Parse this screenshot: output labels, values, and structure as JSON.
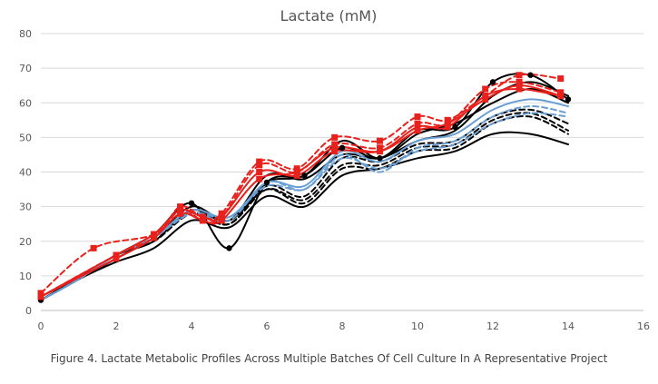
{
  "caption": "Figure 4. Lactate Metabolic Profiles Across Multiple Batches Of Cell Culture In A Representative Project",
  "chart_data": {
    "type": "line",
    "title": "Lactate (mM)",
    "xlabel": "",
    "ylabel": "",
    "xlim": [
      0,
      16
    ],
    "ylim": [
      0,
      80
    ],
    "x_ticks": [
      0,
      2,
      4,
      6,
      8,
      10,
      12,
      14,
      16
    ],
    "y_ticks": [
      0,
      10,
      20,
      30,
      40,
      50,
      60,
      70,
      80
    ],
    "grid": "horizontal",
    "legend": "none",
    "series": [
      {
        "color": "#000000",
        "style": "solid",
        "marker": "none",
        "x": [
          0,
          1,
          2,
          3,
          4,
          5,
          6,
          7,
          8,
          9,
          10,
          11,
          12,
          13,
          14
        ],
        "y": [
          3,
          9,
          14,
          18,
          26,
          24,
          33,
          30,
          39,
          41,
          44,
          46,
          51,
          51,
          48
        ]
      },
      {
        "color": "#000000",
        "style": "solid",
        "marker": "circle",
        "x": [
          0,
          2,
          3,
          4,
          5,
          6,
          7,
          8,
          9,
          10,
          11,
          12,
          13,
          14
        ],
        "y": [
          3,
          16,
          22,
          31,
          18,
          37,
          39,
          47,
          44,
          52,
          53,
          66,
          68,
          61
        ]
      },
      {
        "color": "#000000",
        "style": "solid",
        "marker": "none",
        "x": [
          0,
          1,
          2,
          3,
          4,
          5,
          6,
          7,
          8,
          9,
          10,
          11,
          12,
          13,
          14
        ],
        "y": [
          3,
          9,
          16,
          20,
          29,
          26,
          39,
          38,
          45,
          44,
          49,
          52,
          62,
          66,
          62
        ]
      },
      {
        "color": "#000000",
        "style": "solid",
        "marker": "none",
        "x": [
          0,
          1,
          2,
          3,
          4,
          5,
          6,
          7,
          8,
          9,
          10,
          11,
          12,
          13,
          14
        ],
        "y": [
          3,
          9,
          15,
          21,
          30,
          26,
          37,
          39,
          49,
          44,
          51,
          54,
          60,
          64,
          60
        ]
      },
      {
        "color": "#000000",
        "style": "dashed",
        "marker": "none",
        "x": [
          0,
          1,
          2,
          3,
          4,
          5,
          6,
          7,
          8,
          9,
          10,
          11,
          12,
          13,
          14
        ],
        "y": [
          3,
          9,
          16,
          20,
          28,
          25,
          35,
          32,
          42,
          42,
          47,
          48,
          55,
          57,
          52
        ]
      },
      {
        "color": "#000000",
        "style": "dashed",
        "marker": "none",
        "x": [
          0,
          1,
          2,
          3,
          4,
          5,
          6,
          7,
          8,
          9,
          10,
          11,
          12,
          13,
          14
        ],
        "y": [
          3,
          9,
          16,
          21,
          28,
          25,
          36,
          33,
          44,
          43,
          48,
          49,
          56,
          58,
          54
        ]
      },
      {
        "color": "#000000",
        "style": "dashed",
        "marker": "none",
        "x": [
          0,
          1,
          2,
          3,
          4,
          5,
          6,
          7,
          8,
          9,
          10,
          11,
          12,
          13,
          14
        ],
        "y": [
          3,
          9,
          16,
          20,
          28,
          26,
          35,
          31,
          41,
          41,
          46,
          47,
          54,
          56,
          51
        ]
      },
      {
        "color": "#6a9fd4",
        "style": "dashed",
        "marker": "none",
        "x": [
          0,
          1,
          2,
          3,
          4,
          5,
          6,
          7,
          8,
          9,
          10,
          11,
          12,
          13,
          14
        ],
        "y": [
          3,
          9,
          16,
          21,
          28,
          27,
          36,
          35,
          44,
          41,
          46,
          48,
          54,
          57,
          56
        ]
      },
      {
        "color": "#6a9fd4",
        "style": "dashed",
        "marker": "none",
        "x": [
          0,
          1,
          2,
          3,
          4,
          5,
          6,
          7,
          8,
          9,
          10,
          11,
          12,
          13,
          14
        ],
        "y": [
          3,
          9,
          16,
          21,
          28,
          26,
          37,
          35,
          45,
          40,
          47,
          49,
          56,
          59,
          57
        ]
      },
      {
        "color": "#6a9fd4",
        "style": "solid",
        "marker": "none",
        "x": [
          0,
          1,
          2,
          3,
          4,
          5,
          6,
          7,
          8,
          9,
          10,
          11,
          12,
          13,
          14
        ],
        "y": [
          3,
          9,
          16,
          21,
          29,
          27,
          37,
          36,
          46,
          43,
          49,
          51,
          58,
          61,
          59
        ]
      },
      {
        "color": "#e8211c",
        "style": "dashed",
        "marker": "square",
        "x": [
          0,
          1.4,
          3,
          3.7,
          4.3,
          4.8,
          5.8,
          6.8,
          7.8,
          9,
          10,
          10.8,
          11.8,
          12.7,
          13.8
        ],
        "y": [
          5,
          18,
          22,
          30,
          27,
          28,
          43,
          41,
          50,
          49,
          56,
          55,
          62,
          68,
          67
        ]
      },
      {
        "color": "#e8211c",
        "style": "dashed",
        "marker": "square",
        "x": [
          0,
          2,
          3,
          3.7,
          4.3,
          4.8,
          5.8,
          6.8,
          7.8,
          9,
          10,
          10.8,
          11.8,
          12.7,
          13.8
        ],
        "y": [
          4,
          16,
          21,
          29,
          26,
          27,
          42,
          40,
          48,
          47,
          54,
          54,
          64,
          66,
          63
        ]
      },
      {
        "color": "#e8211c",
        "style": "solid",
        "marker": "square",
        "x": [
          0,
          2,
          3,
          3.7,
          4.3,
          4.8,
          5.8,
          6.8,
          7.8,
          9,
          10,
          10.8,
          11.8,
          12.7,
          13.8
        ],
        "y": [
          4,
          15,
          21,
          28,
          26,
          26,
          38,
          40,
          47,
          46,
          52,
          54,
          61,
          65,
          62
        ]
      },
      {
        "color": "#e8211c",
        "style": "solid",
        "marker": "square",
        "x": [
          0,
          2,
          3,
          3.7,
          4.3,
          4.8,
          5.8,
          6.8,
          7.8,
          9,
          10,
          10.8,
          11.8,
          12.7,
          13.8
        ],
        "y": [
          4,
          16,
          22,
          29,
          27,
          27,
          40,
          39,
          46,
          46,
          53,
          53,
          62,
          64,
          62
        ]
      }
    ]
  }
}
